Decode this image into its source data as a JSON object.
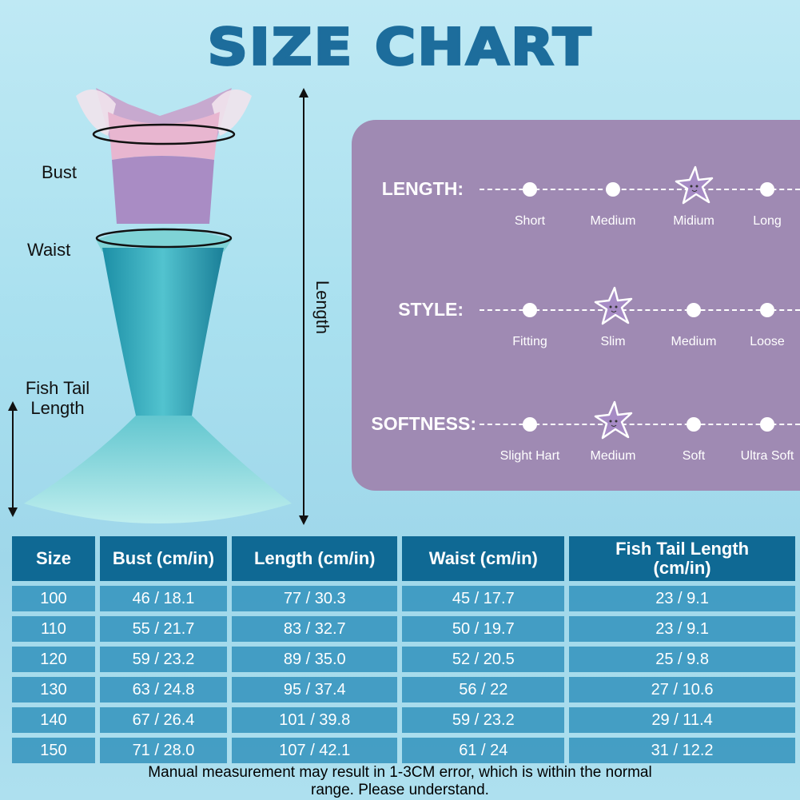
{
  "title": "SIZE CHART",
  "diagram": {
    "bust": "Bust",
    "waist": "Waist",
    "fish_tail": "Fish Tail Length",
    "length": "Length"
  },
  "colors": {
    "title": "#1d6d9c",
    "panel": "#9f8ab3",
    "header": "#0f6994",
    "cell": "#3a95bd"
  },
  "ratings": [
    {
      "name": "LENGTH:",
      "options": [
        "Short",
        "Medium",
        "Midium",
        "Long"
      ],
      "selected": 2
    },
    {
      "name": "STYLE:",
      "options": [
        "Fitting",
        "Slim",
        "Medium",
        "Loose"
      ],
      "selected": 1
    },
    {
      "name": "SOFTNESS:",
      "options": [
        "Slight Hart",
        "Medium",
        "Soft",
        "Ultra Soft"
      ],
      "selected": 1
    }
  ],
  "table": {
    "headers": [
      "Size",
      "Bust (cm/in)",
      "Length (cm/in)",
      "Waist (cm/in)",
      "Fish Tail Length (cm/in)"
    ],
    "rows": [
      [
        "100",
        "46 / 18.1",
        "77 / 30.3",
        "45 / 17.7",
        "23 / 9.1"
      ],
      [
        "110",
        "55 / 21.7",
        "83 / 32.7",
        "50 / 19.7",
        "23 / 9.1"
      ],
      [
        "120",
        "59 / 23.2",
        "89 / 35.0",
        "52 / 20.5",
        "25 / 9.8"
      ],
      [
        "130",
        "63 / 24.8",
        "95 / 37.4",
        "56 / 22",
        "27 / 10.6"
      ],
      [
        "140",
        "67 / 26.4",
        "101 / 39.8",
        "59 / 23.2",
        "29 / 11.4"
      ],
      [
        "150",
        "71 / 28.0",
        "107 / 42.1",
        "61 / 24",
        "31 / 12.2"
      ]
    ]
  },
  "note": "Manual measurement may result in 1-3CM error, which is within the normal range. Please understand."
}
